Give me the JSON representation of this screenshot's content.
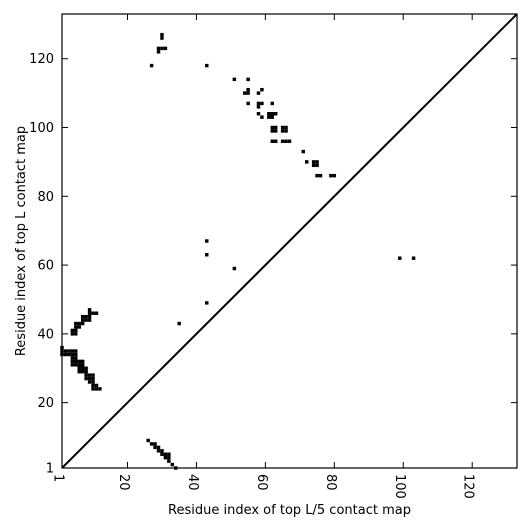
{
  "chart_data": {
    "type": "scatter",
    "title": "",
    "xlabel": "Residue index of top L/5 contact map",
    "ylabel": "Residue index of top L contact map",
    "xlim": [
      1,
      133
    ],
    "ylim": [
      1,
      133
    ],
    "xticks": [
      {
        "value": 1,
        "label": "1"
      },
      {
        "value": 20,
        "label": "20"
      },
      {
        "value": 40,
        "label": "40"
      },
      {
        "value": 60,
        "label": "60"
      },
      {
        "value": 80,
        "label": "80"
      },
      {
        "value": 100,
        "label": "100"
      },
      {
        "value": 120,
        "label": "120"
      }
    ],
    "yticks": [
      {
        "value": 1,
        "label": "1"
      },
      {
        "value": 20,
        "label": "20"
      },
      {
        "value": 40,
        "label": "40"
      },
      {
        "value": 60,
        "label": "60"
      },
      {
        "value": 80,
        "label": "80"
      },
      {
        "value": 100,
        "label": "100"
      },
      {
        "value": 120,
        "label": "120"
      }
    ],
    "diagonal": true,
    "point_color": "#000000",
    "series": [
      {
        "points": [
          [
            26,
            9
          ],
          [
            27,
            8
          ],
          [
            28,
            8
          ],
          [
            28,
            7
          ],
          [
            29,
            7
          ],
          [
            29,
            6
          ],
          [
            30,
            6
          ],
          [
            30,
            5
          ],
          [
            31,
            5
          ],
          [
            31,
            4
          ],
          [
            32,
            4
          ],
          [
            32,
            3
          ],
          [
            32,
            5
          ],
          [
            33,
            2
          ],
          [
            34,
            1
          ],
          [
            43,
            49
          ],
          [
            35,
            43
          ],
          [
            51,
            59
          ],
          [
            43,
            63
          ],
          [
            43,
            67
          ],
          [
            99,
            62
          ],
          [
            103,
            62
          ],
          [
            30,
            127
          ],
          [
            30,
            126
          ],
          [
            29,
            123
          ],
          [
            30,
            123
          ],
          [
            31,
            123
          ],
          [
            29,
            122
          ],
          [
            27,
            118
          ],
          [
            43,
            118
          ],
          [
            51,
            114
          ],
          [
            55,
            114
          ],
          [
            54,
            110
          ],
          [
            55,
            110
          ],
          [
            55,
            111
          ],
          [
            58,
            110
          ],
          [
            59,
            111
          ],
          [
            55,
            107
          ],
          [
            58,
            107
          ],
          [
            59,
            107
          ],
          [
            62,
            107
          ],
          [
            58,
            106
          ],
          [
            58,
            104
          ],
          [
            59,
            103
          ],
          [
            61,
            103
          ],
          [
            62,
            104
          ],
          [
            63,
            104
          ],
          [
            62,
            103
          ],
          [
            61,
            104
          ],
          [
            62,
            100
          ],
          [
            63,
            100
          ],
          [
            62,
            99
          ],
          [
            63,
            99
          ],
          [
            65,
            100
          ],
          [
            66,
            100
          ],
          [
            65,
            99
          ],
          [
            66,
            99
          ],
          [
            62,
            96
          ],
          [
            63,
            96
          ],
          [
            65,
            96
          ],
          [
            66,
            96
          ],
          [
            67,
            96
          ],
          [
            71,
            93
          ],
          [
            72,
            90
          ],
          [
            74,
            90
          ],
          [
            75,
            90
          ],
          [
            74,
            89
          ],
          [
            75,
            89
          ],
          [
            75,
            86
          ],
          [
            76,
            86
          ],
          [
            79,
            86
          ],
          [
            80,
            86
          ],
          [
            1,
            36
          ],
          [
            1,
            35
          ],
          [
            1,
            34
          ],
          [
            2,
            35
          ],
          [
            2,
            34
          ],
          [
            3,
            35
          ],
          [
            3,
            34
          ],
          [
            4,
            35
          ],
          [
            4,
            34
          ],
          [
            4,
            33
          ],
          [
            4,
            32
          ],
          [
            4,
            31
          ],
          [
            5,
            35
          ],
          [
            5,
            34
          ],
          [
            5,
            33
          ],
          [
            5,
            32
          ],
          [
            5,
            31
          ],
          [
            5,
            32
          ],
          [
            6,
            32
          ],
          [
            6,
            31
          ],
          [
            6,
            30
          ],
          [
            6,
            29
          ],
          [
            7,
            32
          ],
          [
            7,
            31
          ],
          [
            7,
            30
          ],
          [
            7,
            29
          ],
          [
            8,
            30
          ],
          [
            8,
            29
          ],
          [
            8,
            28
          ],
          [
            8,
            27
          ],
          [
            9,
            28
          ],
          [
            9,
            27
          ],
          [
            10,
            28
          ],
          [
            10,
            27
          ],
          [
            9,
            26
          ],
          [
            10,
            26
          ],
          [
            10,
            25
          ],
          [
            11,
            25
          ],
          [
            10,
            24
          ],
          [
            11,
            24
          ],
          [
            12,
            24
          ],
          [
            4,
            40
          ],
          [
            4,
            41
          ],
          [
            5,
            40
          ],
          [
            5,
            41
          ],
          [
            5,
            42
          ],
          [
            5,
            43
          ],
          [
            6,
            42
          ],
          [
            6,
            43
          ],
          [
            7,
            43
          ],
          [
            7,
            44
          ],
          [
            7,
            45
          ],
          [
            8,
            44
          ],
          [
            8,
            45
          ],
          [
            9,
            44
          ],
          [
            9,
            45
          ],
          [
            9,
            46
          ],
          [
            9,
            47
          ],
          [
            10,
            46
          ],
          [
            11,
            46
          ]
        ]
      }
    ]
  }
}
